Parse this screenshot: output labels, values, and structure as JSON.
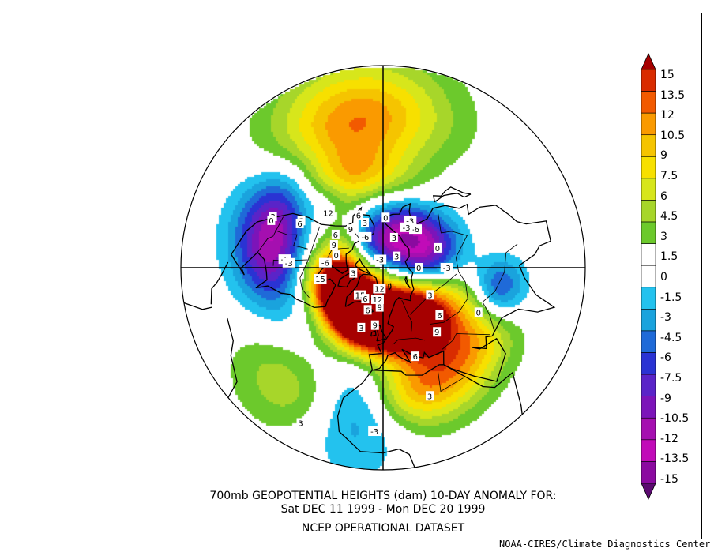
{
  "title_lines": [
    "700mb GEOPOTENTIAL HEIGHTS (dam)   10-DAY ANOMALY FOR:",
    "Sat DEC 11 1999 - Mon DEC 20 1999",
    "NCEP OPERATIONAL DATASET"
  ],
  "credit": "NOAA-CIRES/Climate Diagnostics Center",
  "colorbar": {
    "labels": [
      "15",
      "13.5",
      "12",
      "10.5",
      "9",
      "7.5",
      "6",
      "4.5",
      "3",
      "1.5",
      "0",
      "-1.5",
      "-3",
      "-4.5",
      "-6",
      "-7.5",
      "-9",
      "-10.5",
      "-12",
      "-13.5",
      "-15"
    ],
    "colors": [
      "#a60000",
      "#d92c00",
      "#f25a00",
      "#fa9a00",
      "#f5c400",
      "#f7e000",
      "#d7e61b",
      "#a7d62a",
      "#6cc92c",
      "#ffffff",
      "#ffffff",
      "#23c2ee",
      "#1aa3dd",
      "#1f6ad8",
      "#2a33d3",
      "#5a24c8",
      "#7c14b9",
      "#a50fb0",
      "#c10bb8",
      "#8b0aa0",
      "#5b0a70"
    ]
  },
  "contour_labels": [
    {
      "t": "0",
      "lat": 62,
      "lon": 177
    },
    {
      "t": "3",
      "lat": 72,
      "lon": 160
    },
    {
      "t": "0",
      "lat": 58,
      "lon": 110
    },
    {
      "t": "-3",
      "lat": 60,
      "lon": 150
    },
    {
      "t": "3",
      "lat": 63,
      "lon": -158
    },
    {
      "t": "-6",
      "lat": 58,
      "lon": -95
    },
    {
      "t": "6",
      "lat": 58,
      "lon": -155
    },
    {
      "t": "15",
      "lat": 55,
      "lon": -80
    },
    {
      "t": "12",
      "lat": 48,
      "lon": -135
    },
    {
      "t": "9",
      "lat": 60,
      "lon": -115
    },
    {
      "t": "6",
      "lat": 58,
      "lon": -125
    },
    {
      "t": "9",
      "lat": 62,
      "lon": -140
    },
    {
      "t": "12",
      "lat": 78,
      "lon": -10
    },
    {
      "t": "15",
      "lat": 70,
      "lon": -40
    },
    {
      "t": "9",
      "lat": 68,
      "lon": -5
    },
    {
      "t": "3",
      "lat": 73,
      "lon": -80
    },
    {
      "t": "0",
      "lat": 63,
      "lon": -105
    },
    {
      "t": "3",
      "lat": 40,
      "lon": -120
    },
    {
      "t": "6",
      "lat": 40,
      "lon": -118
    },
    {
      "t": "-6",
      "lat": 38,
      "lon": -95
    },
    {
      "t": "-3",
      "lat": 40,
      "lon": -93
    },
    {
      "t": "3",
      "lat": 28,
      "lon": -115
    },
    {
      "t": "0",
      "lat": 28,
      "lon": -113
    },
    {
      "t": "3",
      "lat": 8,
      "lon": -28
    },
    {
      "t": "-3",
      "lat": 12,
      "lon": -3
    },
    {
      "t": "-3",
      "lat": 85,
      "lon": -160
    },
    {
      "t": "-6",
      "lat": 62,
      "lon": 140
    },
    {
      "t": "-3",
      "lat": 64,
      "lon": 150
    },
    {
      "t": "0",
      "lat": 70,
      "lon": 90
    },
    {
      "t": "3",
      "lat": 80,
      "lon": 130
    },
    {
      "t": "-6",
      "lat": 70,
      "lon": -150
    },
    {
      "t": "3",
      "lat": 60,
      "lon": 60
    },
    {
      "t": "9",
      "lat": 45,
      "lon": 40
    },
    {
      "t": "6",
      "lat": 50,
      "lon": 50
    },
    {
      "t": "6",
      "lat": 40,
      "lon": 20
    },
    {
      "t": "3",
      "lat": 22,
      "lon": 20
    },
    {
      "t": "0",
      "lat": 35,
      "lon": 65
    },
    {
      "t": "-3",
      "lat": 55,
      "lon": 90
    },
    {
      "t": "6",
      "lat": 70,
      "lon": -30
    },
    {
      "t": "9",
      "lat": 58,
      "lon": -8
    },
    {
      "t": "12",
      "lat": 72,
      "lon": -10
    },
    {
      "t": "6",
      "lat": 65,
      "lon": -20
    },
    {
      "t": "3",
      "lat": 55,
      "lon": -20
    }
  ],
  "anomaly_centers": [
    {
      "lat": 58,
      "lon": -35,
      "amp": 15,
      "sx": 22,
      "sy": 10
    },
    {
      "lat": 65,
      "lon": -60,
      "amp": 13.5,
      "sx": 25,
      "sy": 12
    },
    {
      "lat": 72,
      "lon": -10,
      "amp": 12,
      "sx": 20,
      "sy": 12
    },
    {
      "lat": 65,
      "lon": 15,
      "amp": 6,
      "sx": 22,
      "sy": 10
    },
    {
      "lat": 60,
      "lon": 45,
      "amp": 6,
      "sx": 20,
      "sy": 12
    },
    {
      "lat": 32,
      "lon": -100,
      "amp": -10,
      "sx": 18,
      "sy": 10
    },
    {
      "lat": 25,
      "lon": -120,
      "amp": -5,
      "sx": 16,
      "sy": 10
    },
    {
      "lat": 55,
      "lon": -105,
      "amp": -3,
      "sx": 12,
      "sy": 8
    },
    {
      "lat": 68,
      "lon": 140,
      "amp": -12,
      "sx": 28,
      "sy": 10
    },
    {
      "lat": 78,
      "lon": 120,
      "amp": -6,
      "sx": 20,
      "sy": 10
    },
    {
      "lat": 55,
      "lon": 110,
      "amp": -5,
      "sx": 18,
      "sy": 10
    },
    {
      "lat": 50,
      "lon": -55,
      "amp": -4.5,
      "sx": 12,
      "sy": 8
    },
    {
      "lat": 48,
      "lon": 35,
      "amp": 10,
      "sx": 18,
      "sy": 10
    },
    {
      "lat": 30,
      "lon": 50,
      "amp": 7,
      "sx": 22,
      "sy": 10
    },
    {
      "lat": 25,
      "lon": 15,
      "amp": 7,
      "sx": 18,
      "sy": 10
    },
    {
      "lat": 30,
      "lon": 80,
      "amp": -9,
      "sx": 10,
      "sy": 8
    },
    {
      "lat": 15,
      "lon": -170,
      "amp": 10,
      "sx": 22,
      "sy": 12
    },
    {
      "lat": 38,
      "lon": -160,
      "amp": 8,
      "sx": 20,
      "sy": 10
    },
    {
      "lat": 42,
      "lon": -140,
      "amp": -3,
      "sx": 8,
      "sy": 6
    },
    {
      "lat": 20,
      "lon": -10,
      "amp": -6,
      "sx": 12,
      "sy": 14
    },
    {
      "lat": 15,
      "lon": -40,
      "amp": 4,
      "sx": 16,
      "sy": 10
    },
    {
      "lat": 75,
      "lon": -150,
      "amp": -4,
      "sx": 16,
      "sy": 8
    },
    {
      "lat": 70,
      "lon": 175,
      "amp": 3,
      "sx": 16,
      "sy": 8
    }
  ]
}
